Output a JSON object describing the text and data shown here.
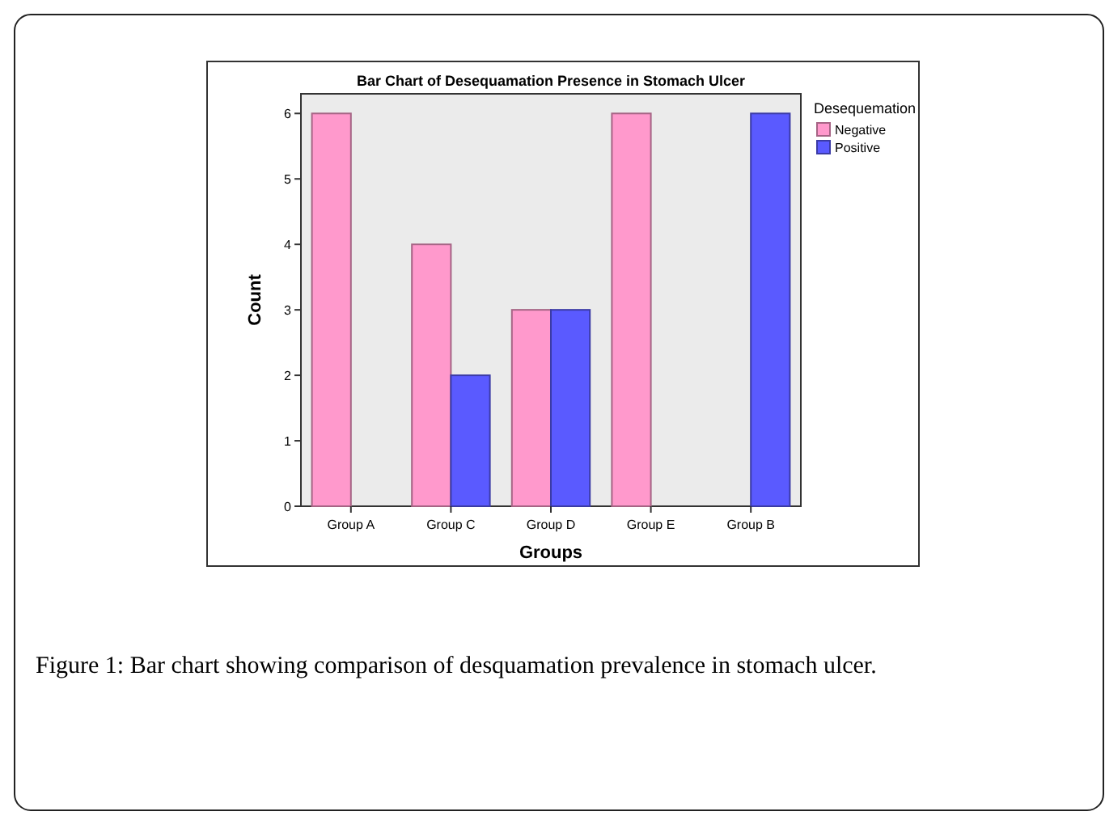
{
  "chart_data": {
    "type": "bar",
    "title": "Bar Chart of Desequamation Presence in Stomach Ulcer",
    "xlabel": "Groups",
    "ylabel": "Count",
    "legend_title": "Desequemation",
    "categories": [
      "Group A",
      "Group C",
      "Group D",
      "Group E",
      "Group B"
    ],
    "series": [
      {
        "name": "Negative",
        "color": "#ff99cc",
        "values": [
          6,
          4,
          3,
          6,
          0
        ]
      },
      {
        "name": "Positive",
        "color": "#5a5aff",
        "values": [
          0,
          2,
          3,
          0,
          6
        ]
      }
    ],
    "ylim": [
      0,
      6.3
    ],
    "yticks": [
      0,
      1,
      2,
      3,
      4,
      5,
      6
    ],
    "grid": false,
    "legend": "right",
    "annotations": [
      "Figure 1: Bar chart showing comparison of desquamation prevalence in stomach ulcer."
    ]
  }
}
